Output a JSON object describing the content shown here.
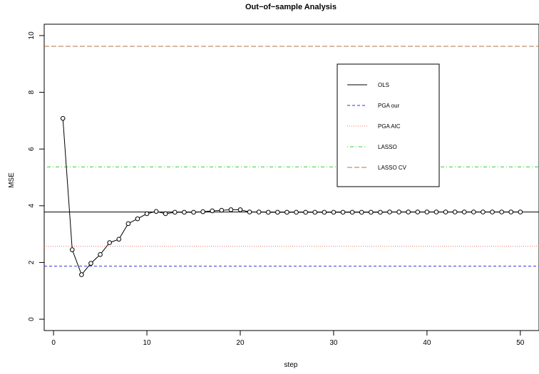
{
  "chart_data": {
    "type": "line",
    "title": "Out−of−sample Analysis",
    "xlabel": "step",
    "ylabel": "MSE",
    "xlim": [
      -1,
      52
    ],
    "ylim": [
      -0.4,
      10.4
    ],
    "x_ticks": [
      0,
      10,
      20,
      30,
      40,
      50
    ],
    "y_ticks": [
      0,
      2,
      4,
      6,
      8,
      10
    ],
    "x_tick_labels": [
      "0",
      "10",
      "20",
      "30",
      "40",
      "50"
    ],
    "y_tick_labels": [
      "0",
      "2",
      "4",
      "6",
      "8",
      "10"
    ],
    "grid": false,
    "legend_position": "upper-right inside plot",
    "series": [
      {
        "style": "line-with-open-circles",
        "color": "#000000",
        "x": [
          1,
          2,
          3,
          4,
          5,
          6,
          7,
          8,
          9,
          10,
          11,
          12,
          13,
          14,
          15,
          16,
          17,
          18,
          19,
          20,
          21,
          22,
          23,
          24,
          25,
          26,
          27,
          28,
          29,
          30,
          31,
          32,
          33,
          34,
          35,
          36,
          37,
          38,
          39,
          40,
          41,
          42,
          43,
          44,
          45,
          46,
          47,
          48,
          49,
          50
        ],
        "y": [
          7.08,
          2.45,
          1.57,
          1.97,
          2.28,
          2.7,
          2.82,
          3.37,
          3.54,
          3.72,
          3.8,
          3.72,
          3.77,
          3.77,
          3.77,
          3.79,
          3.82,
          3.84,
          3.86,
          3.86,
          3.78,
          3.78,
          3.77,
          3.77,
          3.77,
          3.77,
          3.77,
          3.77,
          3.77,
          3.77,
          3.77,
          3.77,
          3.77,
          3.77,
          3.77,
          3.78,
          3.78,
          3.78,
          3.78,
          3.78,
          3.78,
          3.78,
          3.78,
          3.78,
          3.78,
          3.78,
          3.78,
          3.78,
          3.78,
          3.78
        ]
      }
    ],
    "hlines": [
      {
        "name": "OLS",
        "y": 3.78,
        "color": "#000000",
        "dash": "solid"
      },
      {
        "name": "PGA our",
        "y": 1.87,
        "color": "#3333dd",
        "dash": "dashed"
      },
      {
        "name": "PGA AIC",
        "y": 2.57,
        "color": "#e07a5f",
        "dash": "dotted"
      },
      {
        "name": "LASSO",
        "y": 5.37,
        "color": "#33cc33",
        "dash": "dotdash"
      },
      {
        "name": "LASSO CV",
        "y": 9.62,
        "color": "#b5704a",
        "dash": "longdash"
      }
    ]
  }
}
